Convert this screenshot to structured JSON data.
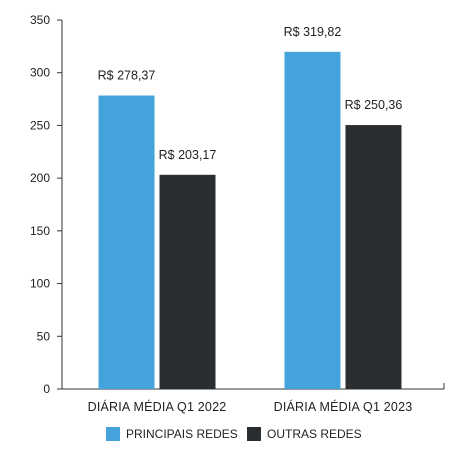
{
  "chart_data": {
    "type": "bar",
    "categories": [
      "DIÁRIA MÉDIA Q1 2022",
      "DIÁRIA MÉDIA Q1 2023"
    ],
    "series": [
      {
        "name": "PRINCIPAIS REDES",
        "color": "#45a3db",
        "values": [
          278.37,
          319.82
        ],
        "labels": [
          "R$ 278,37",
          "R$ 319,82"
        ]
      },
      {
        "name": "OUTRAS REDES",
        "color": "#2b2e30",
        "values": [
          203.17,
          250.36
        ],
        "labels": [
          "R$ 203,17",
          "R$ 250,36"
        ]
      }
    ],
    "yticks": [
      0,
      50,
      100,
      150,
      200,
      250,
      300,
      350
    ],
    "ylim": [
      0,
      350
    ],
    "grid": false,
    "legend_position": "bottom"
  }
}
